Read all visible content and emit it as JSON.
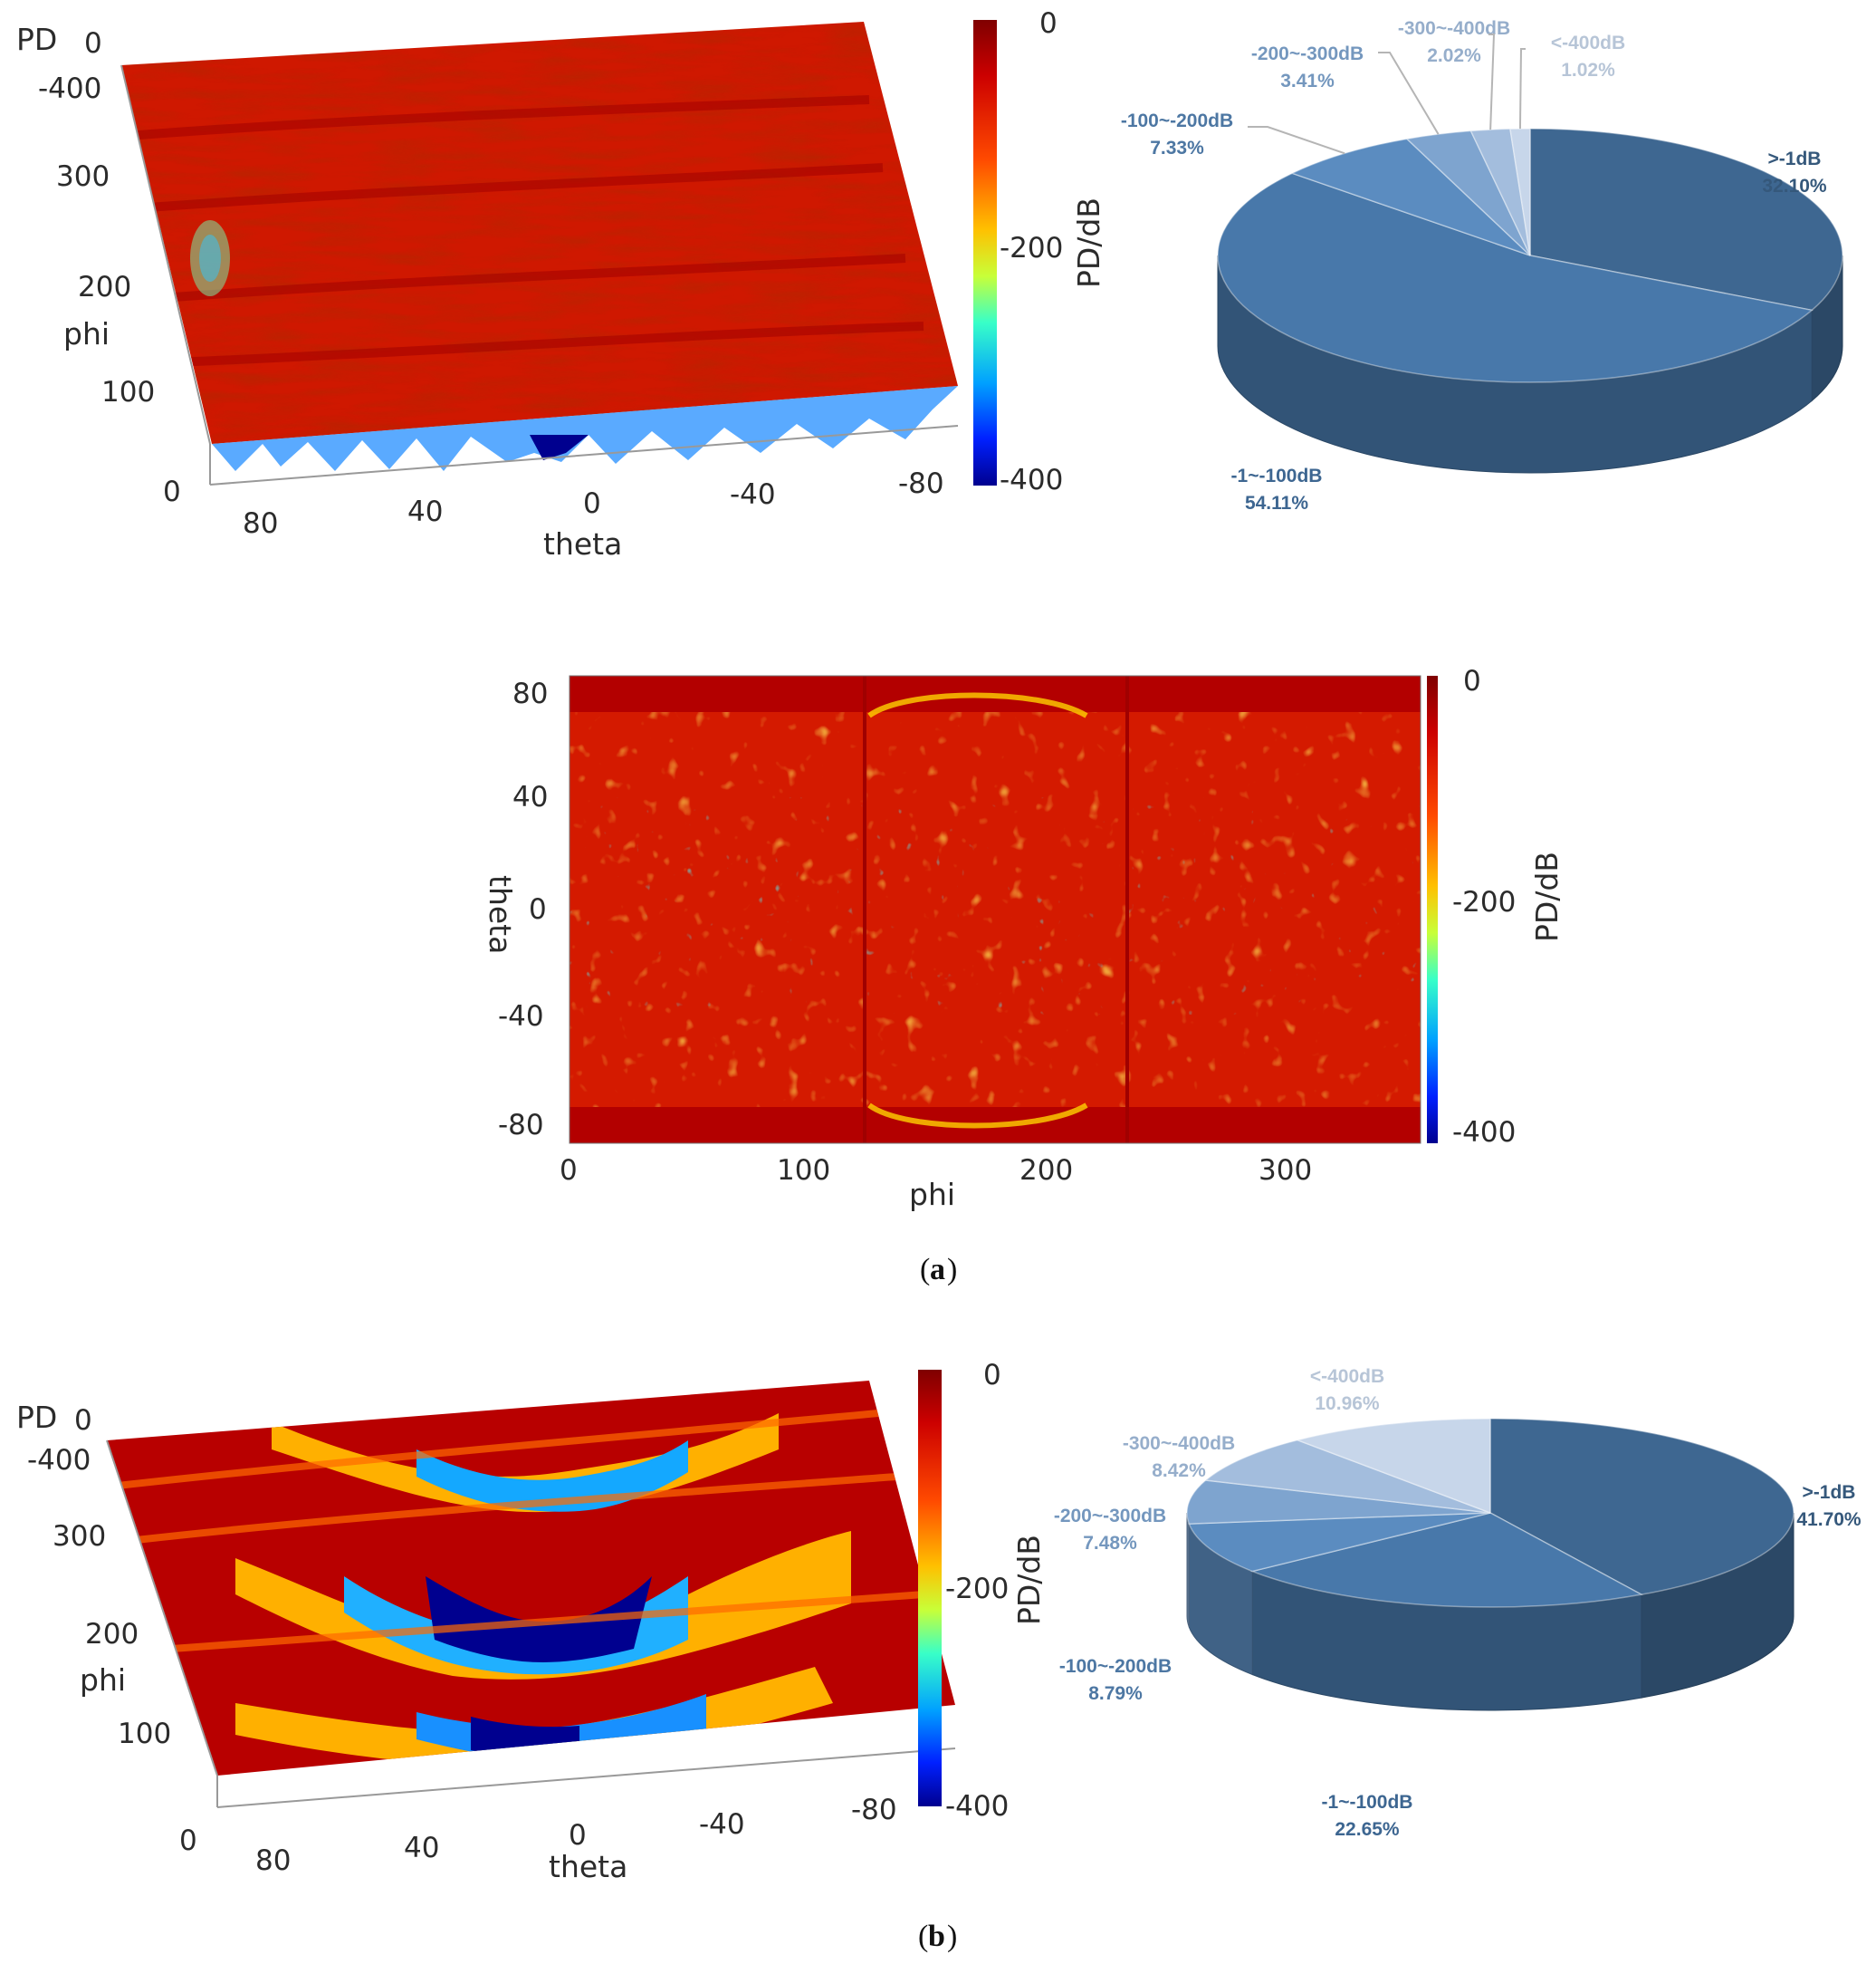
{
  "captions": {
    "a": "a",
    "b": "b"
  },
  "panel_a": {
    "surface": {
      "z_label": "PD",
      "z_tick_top": "0",
      "z_tick_bottom": "-400",
      "y_label": "phi",
      "y_ticks": [
        "300",
        "200",
        "100",
        "0"
      ],
      "x_label": "theta",
      "x_ticks": [
        "80",
        "40",
        "0",
        "-40",
        "-80"
      ]
    },
    "colorbar": {
      "label": "PD/dB",
      "ticks": [
        "0",
        "-200",
        "-400"
      ]
    },
    "heatmap": {
      "xlabel": "phi",
      "x_ticks": [
        "0",
        "100",
        "200",
        "300"
      ],
      "ylabel": "theta",
      "y_ticks": [
        "80",
        "40",
        "0",
        "-40",
        "-80"
      ],
      "colorbar_label": "PD/dB",
      "colorbar_ticks": [
        "0",
        "-200",
        "-400"
      ]
    }
  },
  "panel_b": {
    "surface": {
      "z_label": "PD",
      "z_tick_top": "0",
      "z_tick_bottom": "-400",
      "y_label": "phi",
      "y_ticks": [
        "300",
        "200",
        "100",
        "0"
      ],
      "x_label": "theta",
      "x_ticks": [
        "80",
        "40",
        "0",
        "-40",
        "-80"
      ]
    },
    "colorbar": {
      "label": "PD/dB",
      "ticks": [
        "0",
        "-200",
        "-400"
      ]
    }
  },
  "colors": {
    "pie_shades": [
      "#3e6791",
      "#4878aa",
      "#5b8cc0",
      "#7ea4cf",
      "#a3bddd",
      "#c7d6ea"
    ],
    "jet_low": "#00008f",
    "jet_high": "#7f0000"
  },
  "chart_data": [
    {
      "type": "pie",
      "panel": "a",
      "slices": [
        {
          "label": ">-1dB",
          "value": 32.1,
          "text": "32.10%"
        },
        {
          "label": "-1~-100dB",
          "value": 54.11,
          "text": "54.11%"
        },
        {
          "label": "-100~-200dB",
          "value": 7.33,
          "text": "7.33%"
        },
        {
          "label": "-200~-300dB",
          "value": 3.41,
          "text": "3.41%"
        },
        {
          "label": "-300~-400dB",
          "value": 2.02,
          "text": "2.02%"
        },
        {
          "label": "<-400dB",
          "value": 1.02,
          "text": "1.02%"
        }
      ]
    },
    {
      "type": "pie",
      "panel": "b",
      "slices": [
        {
          "label": ">-1dB",
          "value": 41.7,
          "text": "41.70%"
        },
        {
          "label": "-1~-100dB",
          "value": 22.65,
          "text": "22.65%"
        },
        {
          "label": "-100~-200dB",
          "value": 8.79,
          "text": "8.79%"
        },
        {
          "label": "-200~-300dB",
          "value": 7.48,
          "text": "7.48%"
        },
        {
          "label": "-300~-400dB",
          "value": 8.42,
          "text": "8.42%"
        },
        {
          "label": "<-400dB",
          "value": 10.96,
          "text": "10.96%"
        }
      ]
    },
    {
      "type": "heatmap",
      "panel": "a",
      "x_range": [
        0,
        360
      ],
      "y_range": [
        -90,
        90
      ],
      "z_range": [
        -400,
        0
      ],
      "colorscale": "jet"
    },
    {
      "type": "surface",
      "panel": "a",
      "x_range": [
        90,
        -90
      ],
      "y_range": [
        0,
        360
      ],
      "z_range": [
        -400,
        0
      ],
      "colorscale": "jet"
    },
    {
      "type": "surface",
      "panel": "b",
      "x_range": [
        90,
        -90
      ],
      "y_range": [
        0,
        360
      ],
      "z_range": [
        -400,
        0
      ],
      "colorscale": "jet"
    }
  ]
}
